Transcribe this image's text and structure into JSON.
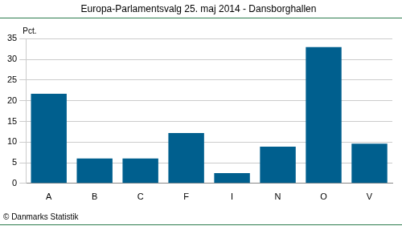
{
  "chart_data": {
    "type": "bar",
    "title": "Europa-Parlamentsvalg 25. maj 2014 - Dansborghallen",
    "ylabel": "Pct.",
    "annotations": [
      "© Danmarks Statistik"
    ],
    "categories": [
      "A",
      "B",
      "C",
      "F",
      "I",
      "N",
      "O",
      "V"
    ],
    "values": [
      21.7,
      6.0,
      6.0,
      12.2,
      2.5,
      8.9,
      33.0,
      9.6
    ],
    "color": "#005f8e",
    "ylim": [
      0,
      35
    ],
    "yticks": [
      0,
      5,
      10,
      15,
      20,
      25,
      30,
      35
    ],
    "grid": true
  }
}
